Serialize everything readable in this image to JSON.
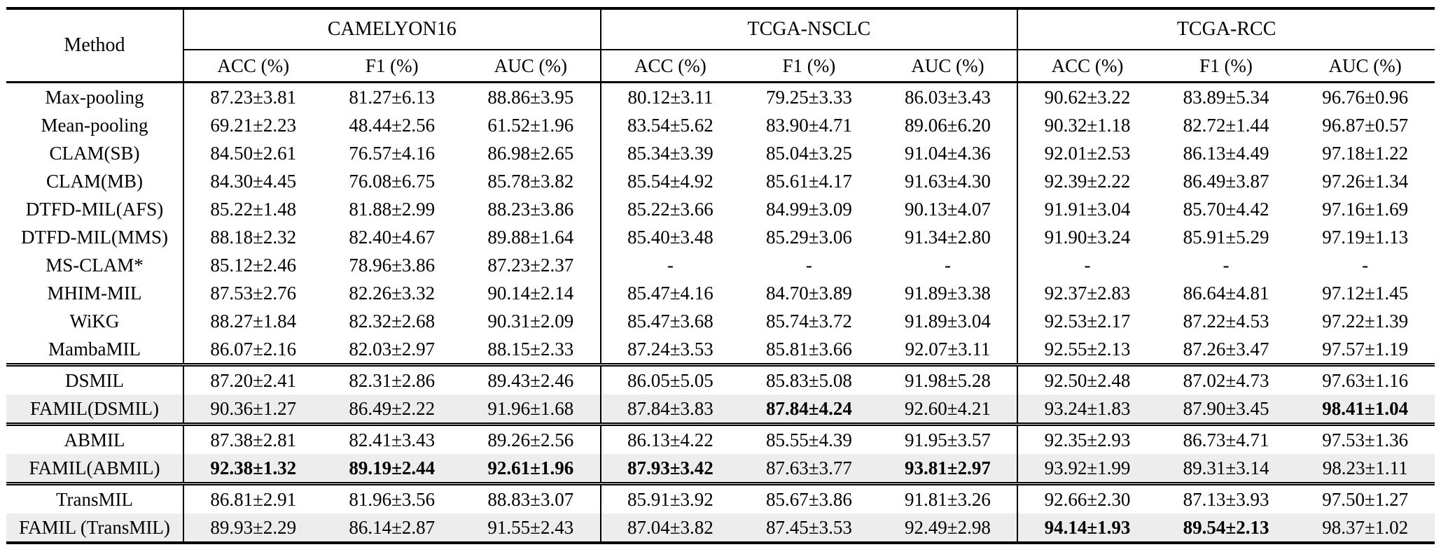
{
  "table": {
    "method_header": "Method",
    "groups": [
      {
        "label": "CAMELYON16",
        "columns": [
          "ACC (%)",
          "F1 (%)",
          "AUC (%)"
        ]
      },
      {
        "label": "TCGA-NSCLC",
        "columns": [
          "ACC (%)",
          "F1 (%)",
          "AUC (%)"
        ]
      },
      {
        "label": "TCGA-RCC",
        "columns": [
          "ACC (%)",
          "F1 (%)",
          "AUC (%)"
        ]
      }
    ],
    "sections": [
      {
        "rows": [
          {
            "method": "Max-pooling",
            "highlight": false,
            "bold": [],
            "values": [
              "87.23±3.81",
              "81.27±6.13",
              "88.86±3.95",
              "80.12±3.11",
              "79.25±3.33",
              "86.03±3.43",
              "90.62±3.22",
              "83.89±5.34",
              "96.76±0.96"
            ]
          },
          {
            "method": "Mean-pooling",
            "highlight": false,
            "bold": [],
            "values": [
              "69.21±2.23",
              "48.44±2.56",
              "61.52±1.96",
              "83.54±5.62",
              "83.90±4.71",
              "89.06±6.20",
              "90.32±1.18",
              "82.72±1.44",
              "96.87±0.57"
            ]
          },
          {
            "method": "CLAM(SB)",
            "highlight": false,
            "bold": [],
            "values": [
              "84.50±2.61",
              "76.57±4.16",
              "86.98±2.65",
              "85.34±3.39",
              "85.04±3.25",
              "91.04±4.36",
              "92.01±2.53",
              "86.13±4.49",
              "97.18±1.22"
            ]
          },
          {
            "method": "CLAM(MB)",
            "highlight": false,
            "bold": [],
            "values": [
              "84.30±4.45",
              "76.08±6.75",
              "85.78±3.82",
              "85.54±4.92",
              "85.61±4.17",
              "91.63±4.30",
              "92.39±2.22",
              "86.49±3.87",
              "97.26±1.34"
            ]
          },
          {
            "method": "DTFD-MIL(AFS)",
            "highlight": false,
            "bold": [],
            "values": [
              "85.22±1.48",
              "81.88±2.99",
              "88.23±3.86",
              "85.22±3.66",
              "84.99±3.09",
              "90.13±4.07",
              "91.91±3.04",
              "85.70±4.42",
              "97.16±1.69"
            ]
          },
          {
            "method": "DTFD-MIL(MMS)",
            "highlight": false,
            "bold": [],
            "values": [
              "88.18±2.32",
              "82.40±4.67",
              "89.88±1.64",
              "85.40±3.48",
              "85.29±3.06",
              "91.34±2.80",
              "91.90±3.24",
              "85.91±5.29",
              "97.19±1.13"
            ]
          },
          {
            "method": "MS-CLAM*",
            "highlight": false,
            "bold": [],
            "values": [
              "85.12±2.46",
              "78.96±3.86",
              "87.23±2.37",
              "-",
              "-",
              "-",
              "-",
              "-",
              "-"
            ]
          },
          {
            "method": "MHIM-MIL",
            "highlight": false,
            "bold": [],
            "values": [
              "87.53±2.76",
              "82.26±3.32",
              "90.14±2.14",
              "85.47±4.16",
              "84.70±3.89",
              "91.89±3.38",
              "92.37±2.83",
              "86.64±4.81",
              "97.12±1.45"
            ]
          },
          {
            "method": "WiKG",
            "highlight": false,
            "bold": [],
            "values": [
              "88.27±1.84",
              "82.32±2.68",
              "90.31±2.09",
              "85.47±3.68",
              "85.74±3.72",
              "91.89±3.04",
              "92.53±2.17",
              "87.22±4.53",
              "97.22±1.39"
            ]
          },
          {
            "method": "MambaMIL",
            "highlight": false,
            "bold": [],
            "values": [
              "86.07±2.16",
              "82.03±2.97",
              "88.15±2.33",
              "87.24±3.53",
              "85.81±3.66",
              "92.07±3.11",
              "92.55±2.13",
              "87.26±3.47",
              "97.57±1.19"
            ]
          }
        ]
      },
      {
        "rows": [
          {
            "method": "DSMIL",
            "highlight": false,
            "bold": [],
            "values": [
              "87.20±2.41",
              "82.31±2.86",
              "89.43±2.46",
              "86.05±5.05",
              "85.83±5.08",
              "91.98±5.28",
              "92.50±2.48",
              "87.02±4.73",
              "97.63±1.16"
            ]
          },
          {
            "method": "FAMIL(DSMIL)",
            "highlight": true,
            "bold": [
              4,
              8
            ],
            "values": [
              "90.36±1.27",
              "86.49±2.22",
              "91.96±1.68",
              "87.84±3.83",
              "87.84±4.24",
              "92.60±4.21",
              "93.24±1.83",
              "87.90±3.45",
              "98.41±1.04"
            ]
          }
        ]
      },
      {
        "rows": [
          {
            "method": "ABMIL",
            "highlight": false,
            "bold": [],
            "values": [
              "87.38±2.81",
              "82.41±3.43",
              "89.26±2.56",
              "86.13±4.22",
              "85.55±4.39",
              "91.95±3.57",
              "92.35±2.93",
              "86.73±4.71",
              "97.53±1.36"
            ]
          },
          {
            "method": "FAMIL(ABMIL)",
            "highlight": true,
            "bold": [
              0,
              1,
              2,
              3,
              5
            ],
            "values": [
              "92.38±1.32",
              "89.19±2.44",
              "92.61±1.96",
              "87.93±3.42",
              "87.63±3.77",
              "93.81±2.97",
              "93.92±1.99",
              "89.31±3.14",
              "98.23±1.11"
            ]
          }
        ]
      },
      {
        "rows": [
          {
            "method": "TransMIL",
            "highlight": false,
            "bold": [],
            "values": [
              "86.81±2.91",
              "81.96±3.56",
              "88.83±3.07",
              "85.91±3.92",
              "85.67±3.86",
              "91.81±3.26",
              "92.66±2.30",
              "87.13±3.93",
              "97.50±1.27"
            ]
          },
          {
            "method": "FAMIL (TransMIL)",
            "highlight": true,
            "bold": [
              6,
              7
            ],
            "values": [
              "89.93±2.29",
              "86.14±2.87",
              "91.55±2.43",
              "87.04±3.82",
              "87.45±3.53",
              "92.49±2.98",
              "94.14±1.93",
              "89.54±2.13",
              "98.37±1.02"
            ]
          }
        ]
      }
    ]
  },
  "colors": {
    "highlight_row": "#ededed",
    "rule": "#000000",
    "text": "#000000"
  }
}
